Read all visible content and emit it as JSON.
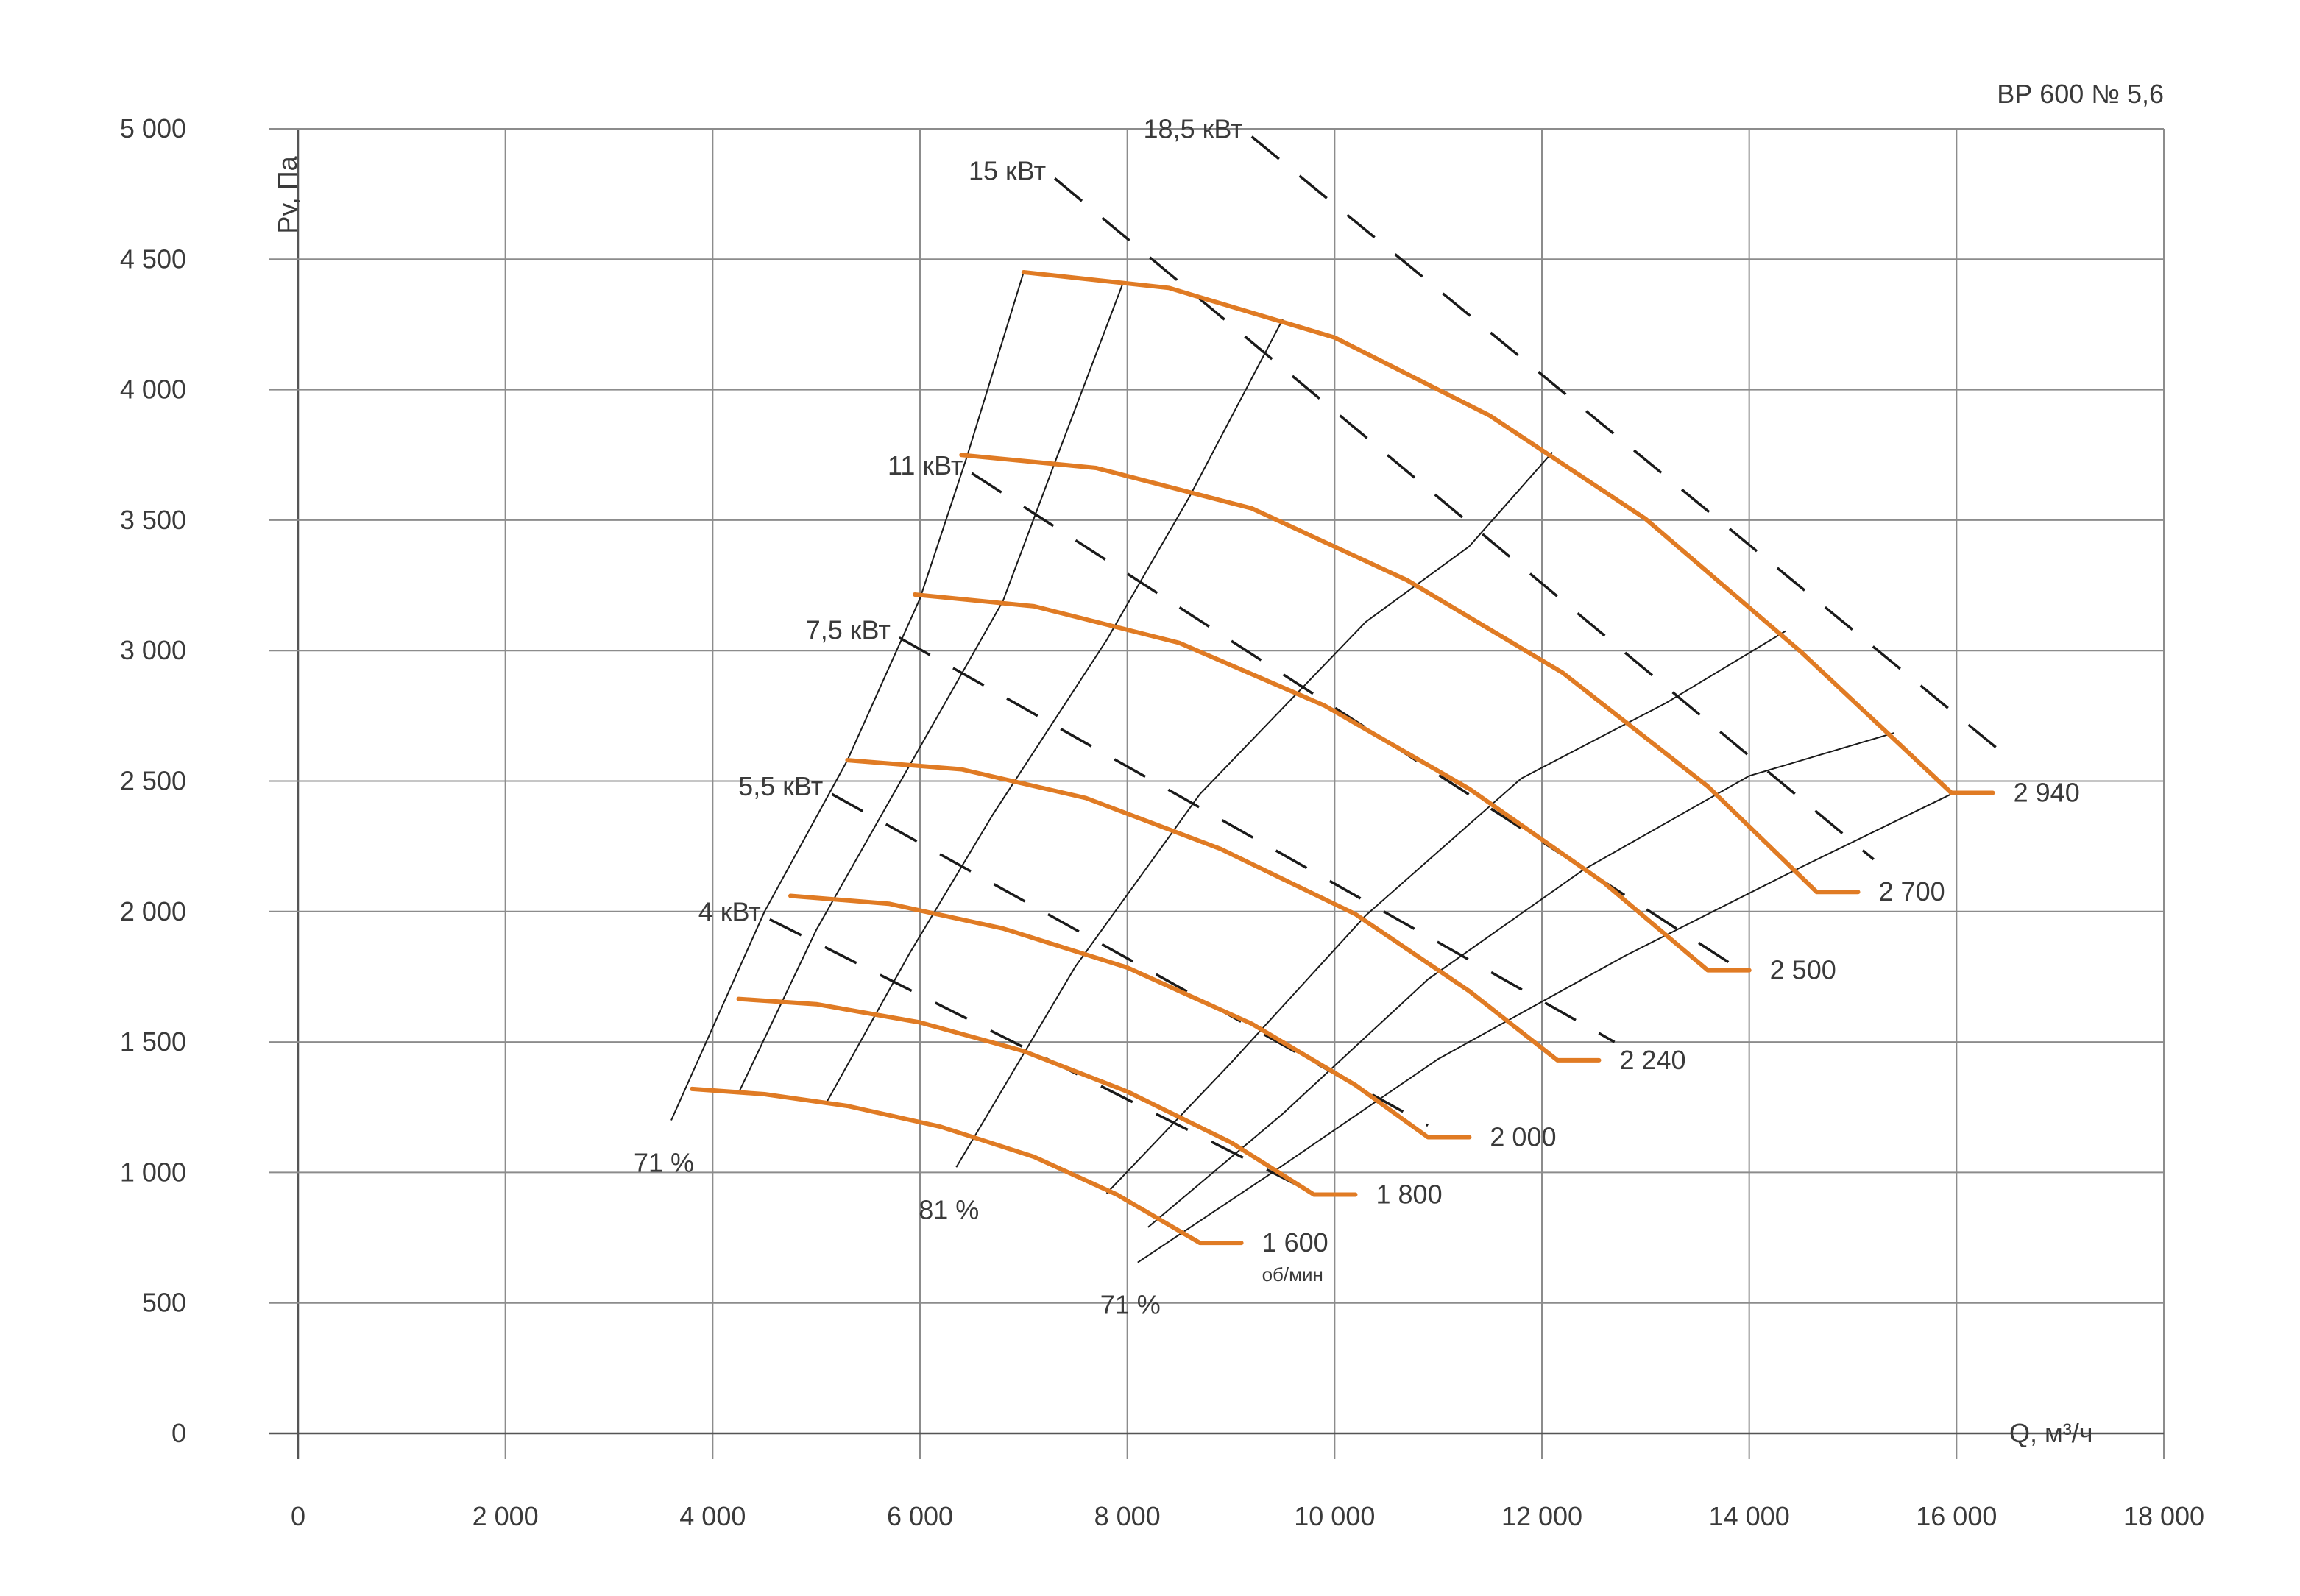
{
  "chart_data": {
    "type": "line",
    "title": "ВР 600 № 5,6",
    "xlabel": "Q, м³/ч",
    "ylabel": "Pv, Па",
    "xlim": [
      0,
      18000
    ],
    "ylim": [
      0,
      5000
    ],
    "x_ticks": [
      0,
      2000,
      4000,
      6000,
      8000,
      10000,
      12000,
      14000,
      16000,
      18000
    ],
    "x_tick_labels": [
      "0",
      "2 000",
      "4 000",
      "6 000",
      "8 000",
      "10 000",
      "12 000",
      "14 000",
      "16 000",
      "18 000"
    ],
    "y_ticks": [
      0,
      500,
      1000,
      1500,
      2000,
      2500,
      3000,
      3500,
      4000,
      4500,
      5000
    ],
    "y_tick_labels": [
      "0",
      "500",
      "1 000",
      "1 500",
      "2 000",
      "2 500",
      "3 000",
      "3 500",
      "4 000",
      "4 500",
      "5 000"
    ],
    "grid": true,
    "colors": {
      "speed_curve": "#e07b24",
      "power_line": "#1a1a1a",
      "efficiency_line": "#1a1a1a",
      "grid": "#8c8c8c"
    },
    "speed_curves": [
      {
        "label": "1 600",
        "unit_label": "об/мин",
        "points": [
          [
            3800,
            1320
          ],
          [
            4500,
            1300
          ],
          [
            5300,
            1255
          ],
          [
            6200,
            1175
          ],
          [
            7100,
            1060
          ],
          [
            7900,
            915
          ],
          [
            8700,
            730
          ]
        ],
        "tail_end_x": 9100
      },
      {
        "label": "1 800",
        "points": [
          [
            4250,
            1665
          ],
          [
            5000,
            1645
          ],
          [
            6000,
            1575
          ],
          [
            7000,
            1465
          ],
          [
            8000,
            1310
          ],
          [
            9000,
            1115
          ],
          [
            9800,
            915
          ]
        ],
        "tail_end_x": 10200
      },
      {
        "label": "2 000",
        "points": [
          [
            4750,
            2060
          ],
          [
            5700,
            2030
          ],
          [
            6800,
            1935
          ],
          [
            8000,
            1785
          ],
          [
            9200,
            1570
          ],
          [
            10200,
            1335
          ],
          [
            10900,
            1135
          ]
        ],
        "tail_end_x": 11300
      },
      {
        "label": "2 240",
        "points": [
          [
            5300,
            2580
          ],
          [
            6400,
            2545
          ],
          [
            7600,
            2435
          ],
          [
            8900,
            2240
          ],
          [
            10200,
            1990
          ],
          [
            11300,
            1695
          ],
          [
            12150,
            1430
          ]
        ],
        "tail_end_x": 12550
      },
      {
        "label": "2 500",
        "points": [
          [
            5950,
            3215
          ],
          [
            7100,
            3170
          ],
          [
            8500,
            3030
          ],
          [
            9900,
            2790
          ],
          [
            11300,
            2470
          ],
          [
            12600,
            2110
          ],
          [
            13600,
            1775
          ]
        ],
        "tail_end_x": 14000
      },
      {
        "label": "2 700",
        "points": [
          [
            6400,
            3750
          ],
          [
            7700,
            3700
          ],
          [
            9200,
            3545
          ],
          [
            10700,
            3270
          ],
          [
            12200,
            2915
          ],
          [
            13600,
            2480
          ],
          [
            14650,
            2075
          ]
        ],
        "tail_end_x": 15050
      },
      {
        "label": "2 940",
        "points": [
          [
            7000,
            4450
          ],
          [
            8400,
            4390
          ],
          [
            10000,
            4200
          ],
          [
            11500,
            3900
          ],
          [
            13000,
            3505
          ],
          [
            14500,
            2995
          ],
          [
            15950,
            2455
          ]
        ],
        "tail_end_x": 16350
      }
    ],
    "power_lines": [
      {
        "label": "4 кВт",
        "points": [
          [
            4550,
            1970
          ],
          [
            9800,
            920
          ]
        ]
      },
      {
        "label": "5,5 кВт",
        "points": [
          [
            5150,
            2450
          ],
          [
            10900,
            1180
          ]
        ]
      },
      {
        "label": "7,5 кВт",
        "points": [
          [
            5800,
            3050
          ],
          [
            12700,
            1500
          ]
        ]
      },
      {
        "label": "11 кВт",
        "points": [
          [
            6500,
            3680
          ],
          [
            13900,
            1780
          ]
        ]
      },
      {
        "label": "15 кВт",
        "points": [
          [
            7300,
            4810
          ],
          [
            15200,
            2200
          ]
        ]
      },
      {
        "label": "18,5 кВт",
        "points": [
          [
            9200,
            4970
          ],
          [
            16500,
            2590
          ]
        ]
      }
    ],
    "efficiency_lines": [
      {
        "label": "71 %",
        "points": [
          [
            3600,
            1200
          ],
          [
            4500,
            2000
          ],
          [
            5300,
            2580
          ],
          [
            6000,
            3200
          ],
          [
            6450,
            3740
          ],
          [
            7000,
            4450
          ]
        ]
      },
      {
        "label": "",
        "points": [
          [
            4250,
            1305
          ],
          [
            5000,
            1930
          ],
          [
            5800,
            2490
          ],
          [
            6800,
            3190
          ],
          [
            7300,
            3720
          ],
          [
            7950,
            4400
          ]
        ]
      },
      {
        "label": "",
        "points": [
          [
            5100,
            1270
          ],
          [
            5900,
            1840
          ],
          [
            6700,
            2370
          ],
          [
            7800,
            3040
          ],
          [
            8600,
            3590
          ],
          [
            9500,
            4270
          ]
        ]
      },
      {
        "label": "81 %",
        "points": [
          [
            6350,
            1020
          ],
          [
            7500,
            1790
          ],
          [
            8700,
            2450
          ],
          [
            10300,
            3110
          ],
          [
            11300,
            3400
          ],
          [
            12100,
            3760
          ]
        ]
      },
      {
        "label": "",
        "points": [
          [
            7800,
            920
          ],
          [
            9000,
            1420
          ],
          [
            10300,
            1985
          ],
          [
            11800,
            2510
          ],
          [
            13200,
            2800
          ],
          [
            14350,
            3075
          ]
        ]
      },
      {
        "label": "",
        "points": [
          [
            8200,
            790
          ],
          [
            9500,
            1225
          ],
          [
            10900,
            1740
          ],
          [
            12400,
            2160
          ],
          [
            14000,
            2520
          ],
          [
            15400,
            2685
          ]
        ]
      },
      {
        "label": "71 %",
        "points": [
          [
            8100,
            655
          ],
          [
            9400,
            1000
          ],
          [
            11000,
            1435
          ],
          [
            12800,
            1830
          ],
          [
            14500,
            2170
          ],
          [
            16000,
            2460
          ]
        ]
      }
    ]
  }
}
